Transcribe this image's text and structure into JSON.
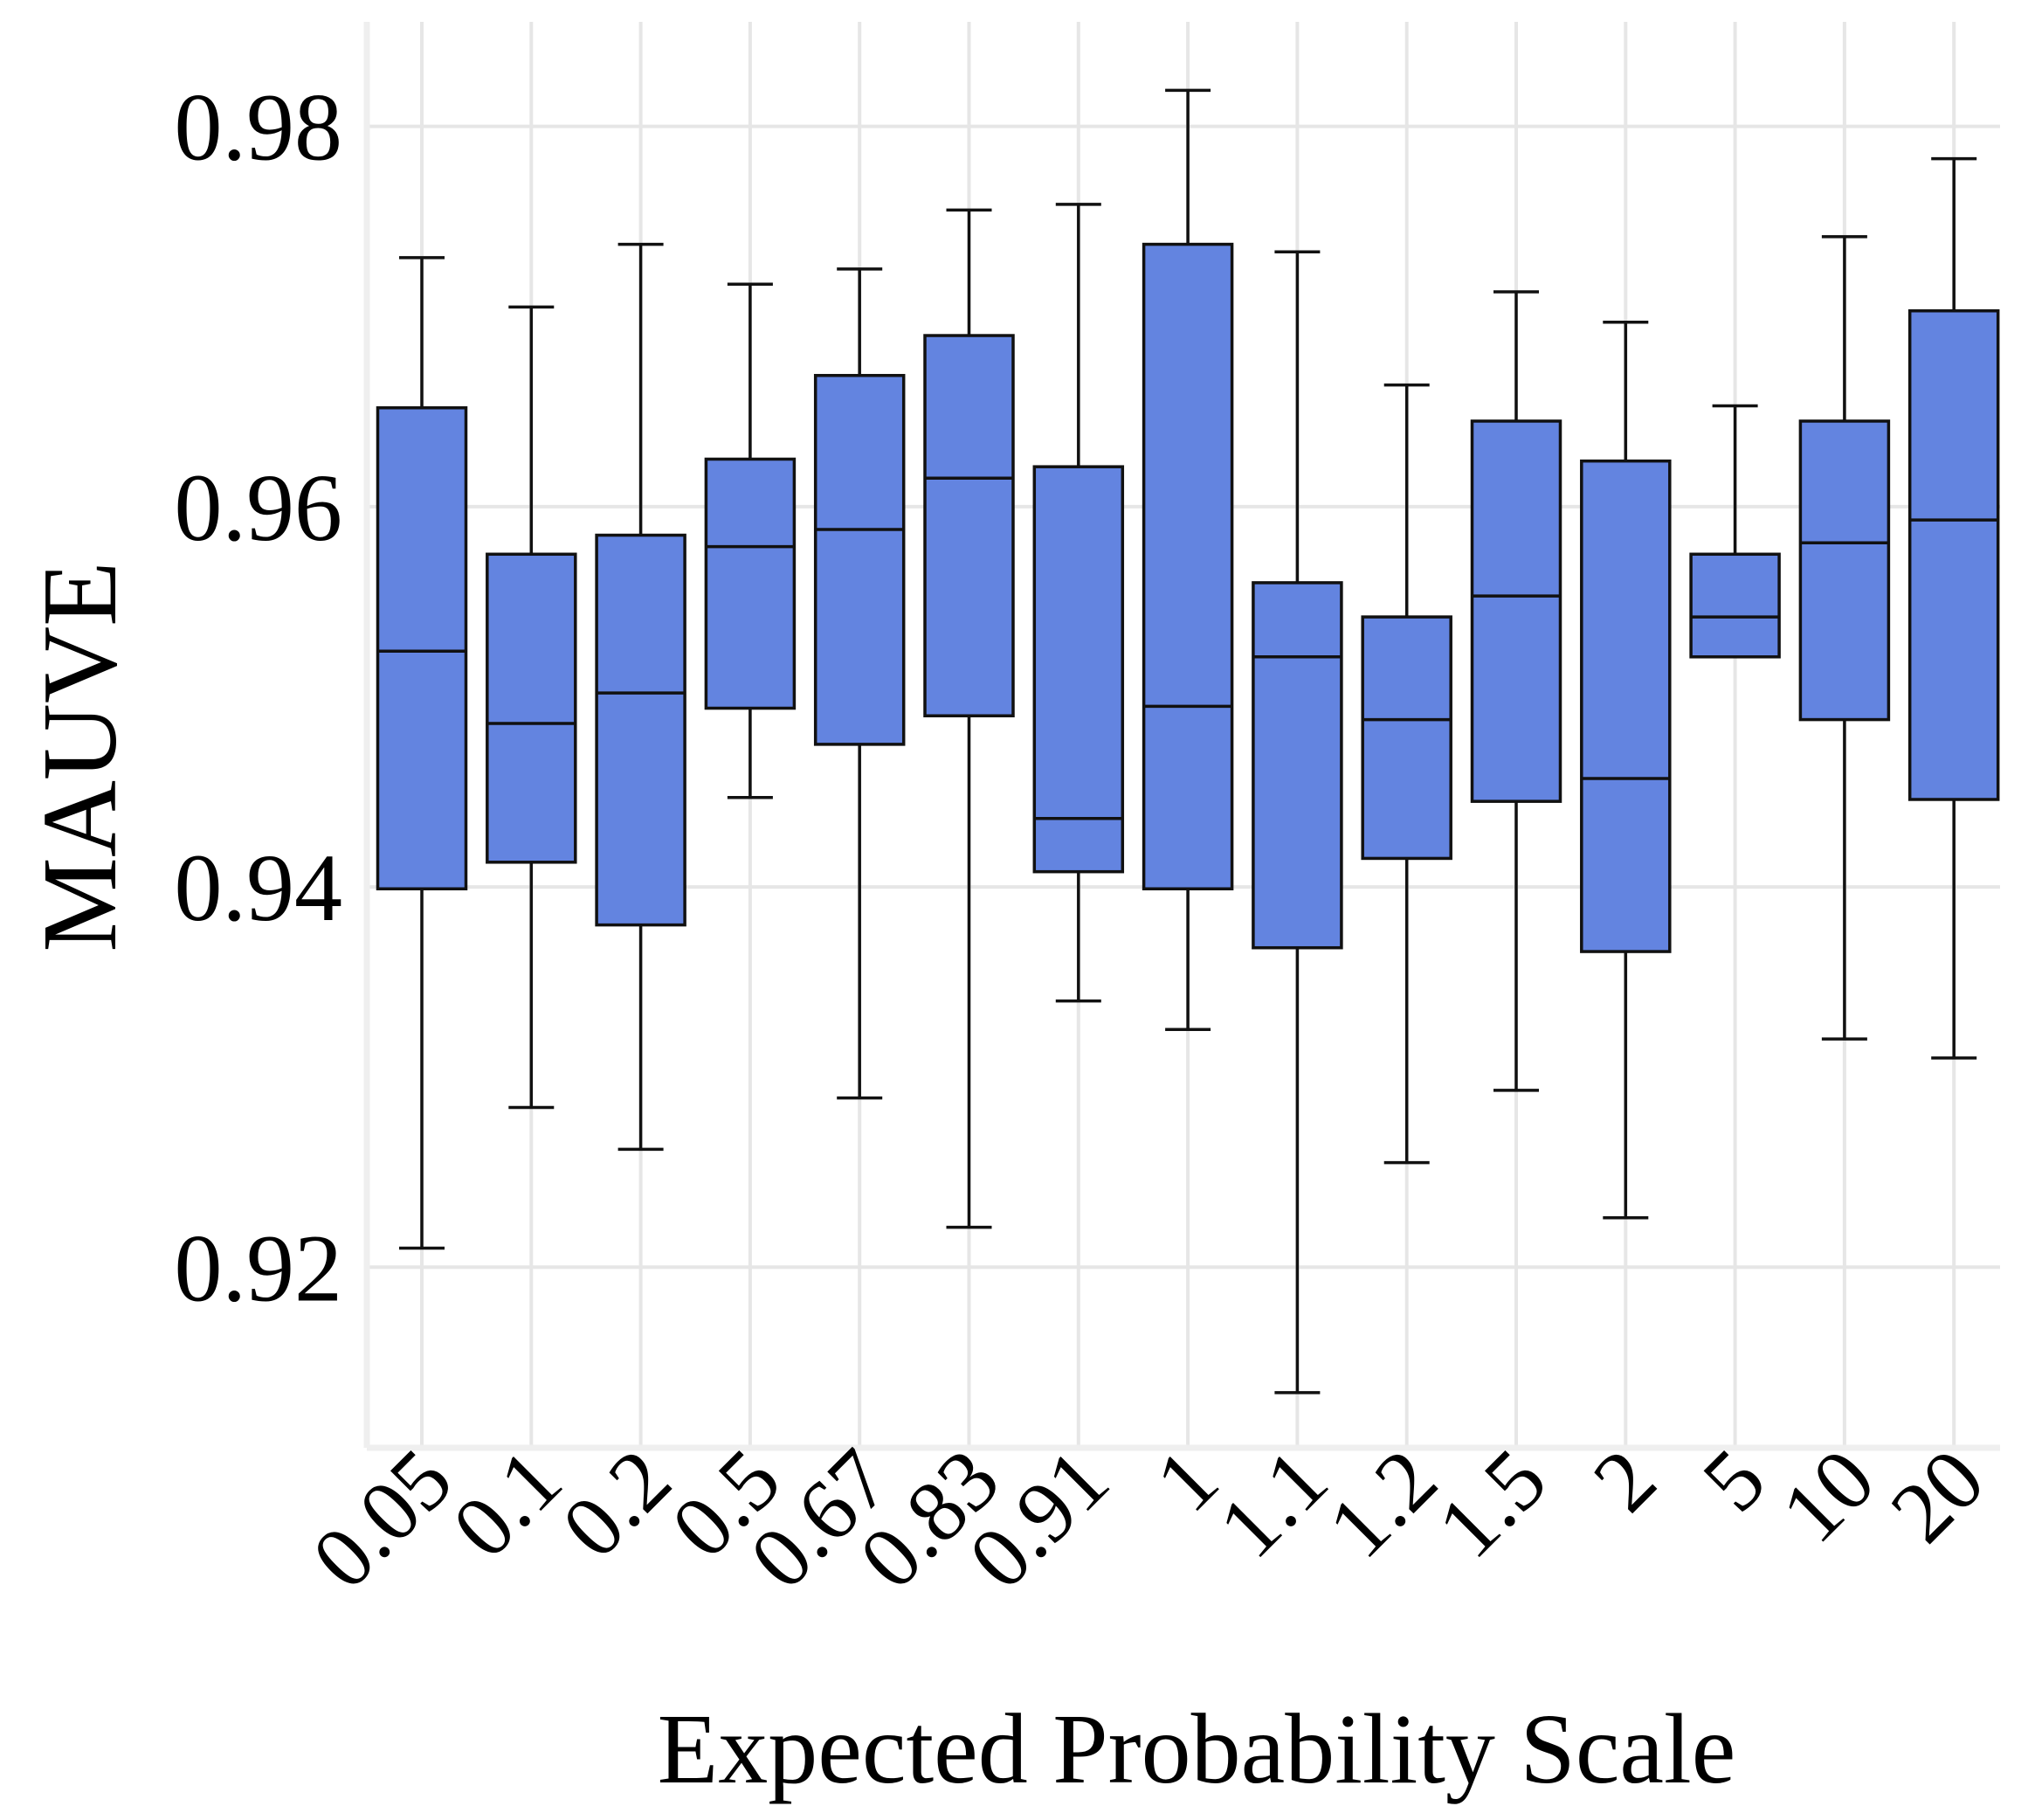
{
  "chart_data": {
    "type": "box",
    "title": "",
    "xlabel": "Expected Probability Scale",
    "ylabel": "MAUVE",
    "ylim": [
      0.9105,
      0.9855
    ],
    "yticks": [
      0.92,
      0.94,
      0.96,
      0.98
    ],
    "ytick_labels": [
      "0.92",
      "0.94",
      "0.96",
      "0.98"
    ],
    "grid": true,
    "box_color": "#6384e0",
    "edge_color": "#111111",
    "grid_color": "#e6e6e6",
    "categories": [
      "0.05",
      "0.1",
      "0.2",
      "0.5",
      "0.67",
      "0.83",
      "0.91",
      "1",
      "1.1",
      "1.2",
      "1.5",
      "2",
      "5",
      "10",
      "20"
    ],
    "boxes": [
      {
        "label": "0.05",
        "whisker_low": 0.921,
        "q1": 0.9399,
        "median": 0.9524,
        "q3": 0.9652,
        "whisker_high": 0.9731
      },
      {
        "label": "0.1",
        "whisker_low": 0.9284,
        "q1": 0.9413,
        "median": 0.9486,
        "q3": 0.9575,
        "whisker_high": 0.9705
      },
      {
        "label": "0.2",
        "whisker_low": 0.9262,
        "q1": 0.938,
        "median": 0.9502,
        "q3": 0.9585,
        "whisker_high": 0.9738
      },
      {
        "label": "0.5",
        "whisker_low": 0.9447,
        "q1": 0.9494,
        "median": 0.9579,
        "q3": 0.9625,
        "whisker_high": 0.9717
      },
      {
        "label": "0.67",
        "whisker_low": 0.9289,
        "q1": 0.9475,
        "median": 0.9588,
        "q3": 0.9669,
        "whisker_high": 0.9725
      },
      {
        "label": "0.83",
        "whisker_low": 0.9221,
        "q1": 0.949,
        "median": 0.9615,
        "q3": 0.969,
        "whisker_high": 0.9756
      },
      {
        "label": "0.91",
        "whisker_low": 0.934,
        "q1": 0.9408,
        "median": 0.9436,
        "q3": 0.9621,
        "whisker_high": 0.9759
      },
      {
        "label": "1",
        "whisker_low": 0.9325,
        "q1": 0.9399,
        "median": 0.9495,
        "q3": 0.9738,
        "whisker_high": 0.9819
      },
      {
        "label": "1.1",
        "whisker_low": 0.9134,
        "q1": 0.9368,
        "median": 0.9521,
        "q3": 0.956,
        "whisker_high": 0.9734
      },
      {
        "label": "1.2",
        "whisker_low": 0.9255,
        "q1": 0.9415,
        "median": 0.9488,
        "q3": 0.9542,
        "whisker_high": 0.9664
      },
      {
        "label": "1.5",
        "whisker_low": 0.9293,
        "q1": 0.9445,
        "median": 0.9553,
        "q3": 0.9645,
        "whisker_high": 0.9713
      },
      {
        "label": "2",
        "whisker_low": 0.9226,
        "q1": 0.9366,
        "median": 0.9457,
        "q3": 0.9624,
        "whisker_high": 0.9697
      },
      {
        "label": "5",
        "whisker_low": 0.9521,
        "q1": 0.9521,
        "median": 0.9542,
        "q3": 0.9575,
        "whisker_high": 0.9653
      },
      {
        "label": "10",
        "whisker_low": 0.932,
        "q1": 0.9488,
        "median": 0.9581,
        "q3": 0.9645,
        "whisker_high": 0.9742
      },
      {
        "label": "20",
        "whisker_low": 0.931,
        "q1": 0.9446,
        "median": 0.9593,
        "q3": 0.9703,
        "whisker_high": 0.9783
      }
    ]
  }
}
